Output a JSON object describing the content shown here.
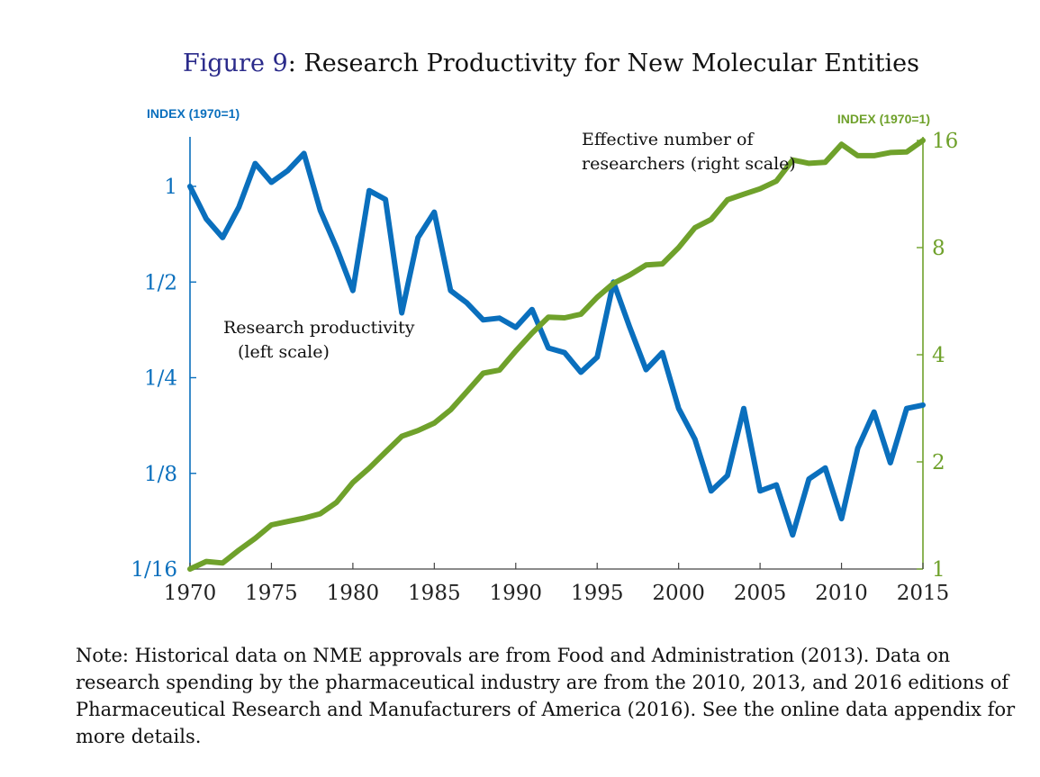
{
  "chart_data": {
    "type": "line",
    "title_prefix": "Figure 9",
    "title_rest": ": Research Productivity for New Molecular Entities",
    "left_axis_title": "INDEX (1970=1)",
    "right_axis_title": "INDEX (1970=1)",
    "left_axis": {
      "scale": "log2",
      "range": [
        0.0625,
        1.35
      ],
      "ticks": [
        {
          "value": 1,
          "label": "1"
        },
        {
          "value": 0.5,
          "label": "1/2"
        },
        {
          "value": 0.25,
          "label": "1/4"
        },
        {
          "value": 0.125,
          "label": "1/8"
        },
        {
          "value": 0.0625,
          "label": "1/16"
        }
      ]
    },
    "right_axis": {
      "scale": "log2",
      "range": [
        1,
        16
      ],
      "ticks": [
        {
          "value": 16,
          "label": "16"
        },
        {
          "value": 8,
          "label": "8"
        },
        {
          "value": 4,
          "label": "4"
        },
        {
          "value": 2,
          "label": "2"
        },
        {
          "value": 1,
          "label": "1"
        }
      ]
    },
    "x_axis": {
      "range": [
        1970,
        2015
      ],
      "ticks": [
        1970,
        1975,
        1980,
        1985,
        1990,
        1995,
        2000,
        2005,
        2010,
        2015
      ]
    },
    "series": [
      {
        "name": "Research productivity",
        "label_lines": [
          "Research productivity",
          "(left scale)"
        ],
        "axis": "left",
        "color": "#0a6fbd",
        "x": [
          1970,
          1971,
          1972,
          1973,
          1974,
          1975,
          1976,
          1977,
          1978,
          1979,
          1980,
          1981,
          1982,
          1983,
          1984,
          1985,
          1986,
          1987,
          1988,
          1989,
          1990,
          1991,
          1992,
          1993,
          1994,
          1995,
          1996,
          1997,
          1998,
          1999,
          2000,
          2001,
          2002,
          2003,
          2004,
          2005,
          2006,
          2007,
          2008,
          2009,
          2010,
          2011,
          2012,
          2013,
          2014,
          2015
        ],
        "values": [
          1.0,
          0.79,
          0.69,
          0.86,
          1.18,
          1.03,
          1.12,
          1.27,
          0.84,
          0.64,
          0.47,
          0.97,
          0.91,
          0.4,
          0.69,
          0.83,
          0.47,
          0.43,
          0.38,
          0.385,
          0.36,
          0.41,
          0.31,
          0.3,
          0.26,
          0.29,
          0.5,
          0.36,
          0.265,
          0.3,
          0.2,
          0.16,
          0.11,
          0.123,
          0.2,
          0.11,
          0.115,
          0.08,
          0.12,
          0.13,
          0.09,
          0.15,
          0.195,
          0.135,
          0.2,
          0.205
        ]
      },
      {
        "name": "Effective number of researchers",
        "label_lines": [
          "Effective number of",
          "researchers (right scale)"
        ],
        "axis": "right",
        "color": "#6fa12b",
        "x": [
          1970,
          1971,
          1972,
          1973,
          1974,
          1975,
          1976,
          1977,
          1978,
          1979,
          1980,
          1981,
          1982,
          1983,
          1984,
          1985,
          1986,
          1987,
          1988,
          1989,
          1990,
          1991,
          1992,
          1993,
          1994,
          1995,
          1996,
          1997,
          1998,
          1999,
          2000,
          2001,
          2002,
          2003,
          2004,
          2005,
          2006,
          2007,
          2008,
          2009,
          2010,
          2011,
          2012,
          2013,
          2014,
          2015
        ],
        "values": [
          1.0,
          1.05,
          1.04,
          1.13,
          1.22,
          1.33,
          1.36,
          1.39,
          1.43,
          1.54,
          1.75,
          1.92,
          2.13,
          2.36,
          2.45,
          2.57,
          2.8,
          3.15,
          3.55,
          3.62,
          4.1,
          4.6,
          5.1,
          5.08,
          5.2,
          5.8,
          6.35,
          6.7,
          7.15,
          7.2,
          8.0,
          9.1,
          9.6,
          10.9,
          11.3,
          11.7,
          12.3,
          14.1,
          13.8,
          13.9,
          15.6,
          14.5,
          14.5,
          14.8,
          14.85,
          16.0
        ]
      }
    ]
  },
  "note": {
    "text": "Note:  Historical data on NME approvals are from Food and Administration (2013).  Data on research spending by the pharmaceutical industry are from the 2010, 2013, and 2016 editions of Pharmaceutical Research and Manufacturers of America (2016).  See the online data appendix for more details."
  },
  "colors": {
    "blue": "#0a6fbd",
    "green": "#6fa12b",
    "title_number": "#2a2a8a"
  }
}
